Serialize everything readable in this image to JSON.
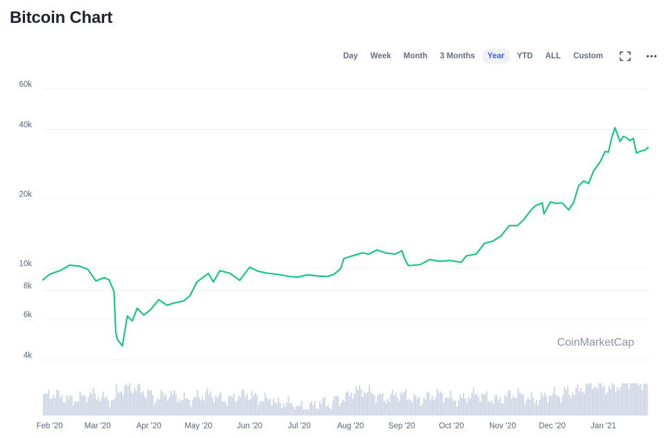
{
  "page": {
    "title": "Bitcoin Chart"
  },
  "toolbar": {
    "ranges": [
      {
        "label": "Day",
        "active": false
      },
      {
        "label": "Week",
        "active": false
      },
      {
        "label": "Month",
        "active": false
      },
      {
        "label": "3 Months",
        "active": false
      },
      {
        "label": "Year",
        "active": true
      },
      {
        "label": "YTD",
        "active": false
      },
      {
        "label": "ALL",
        "active": false
      },
      {
        "label": "Custom",
        "active": false
      }
    ],
    "icons": [
      "fullscreen-icon",
      "more-options-icon"
    ]
  },
  "watermark": "CoinMarketCap",
  "colors": {
    "line": "#16c784",
    "volume": "#cfd6e4",
    "grid": "#eff2f5",
    "active_tab_text": "#3861fb"
  },
  "chart_data": {
    "type": "line",
    "title": "",
    "xlabel": "",
    "ylabel": "",
    "y_scale": "log",
    "ylim": [
      3900,
      68000
    ],
    "grid": "horizontal",
    "y_ticks": [
      {
        "value": 4000,
        "label": "4k"
      },
      {
        "value": 6000,
        "label": "6k"
      },
      {
        "value": 8000,
        "label": "8k"
      },
      {
        "value": 10000,
        "label": "10k"
      },
      {
        "value": 20000,
        "label": "20k"
      },
      {
        "value": 40000,
        "label": "40k"
      },
      {
        "value": 60000,
        "label": "60k"
      }
    ],
    "x_range": [
      "2020-01-28",
      "2021-01-28"
    ],
    "x_ticks": [
      {
        "date": "2020-02-01",
        "label": "Feb '20"
      },
      {
        "date": "2020-03-01",
        "label": "Mar '20"
      },
      {
        "date": "2020-04-01",
        "label": "Apr '20"
      },
      {
        "date": "2020-05-01",
        "label": "May '20"
      },
      {
        "date": "2020-06-01",
        "label": "Jun '20"
      },
      {
        "date": "2020-07-01",
        "label": "Jul '20"
      },
      {
        "date": "2020-08-01",
        "label": "Aug '20"
      },
      {
        "date": "2020-09-01",
        "label": "Sep '20"
      },
      {
        "date": "2020-10-01",
        "label": "Oct '20"
      },
      {
        "date": "2020-11-01",
        "label": "Nov '20"
      },
      {
        "date": "2020-12-01",
        "label": "Dec '20"
      },
      {
        "date": "2021-01-01",
        "label": "Jan '21"
      }
    ],
    "price": [
      [
        "2020-01-28",
        8900
      ],
      [
        "2020-02-01",
        9400
      ],
      [
        "2020-02-08",
        9800
      ],
      [
        "2020-02-13",
        10300
      ],
      [
        "2020-02-19",
        10200
      ],
      [
        "2020-02-24",
        9900
      ],
      [
        "2020-02-29",
        8800
      ],
      [
        "2020-03-05",
        9100
      ],
      [
        "2020-03-08",
        8900
      ],
      [
        "2020-03-11",
        7900
      ],
      [
        "2020-03-12",
        5300
      ],
      [
        "2020-03-13",
        4900
      ],
      [
        "2020-03-16",
        4600
      ],
      [
        "2020-03-19",
        6200
      ],
      [
        "2020-03-22",
        5900
      ],
      [
        "2020-03-25",
        6700
      ],
      [
        "2020-03-29",
        6250
      ],
      [
        "2020-04-02",
        6600
      ],
      [
        "2020-04-07",
        7300
      ],
      [
        "2020-04-12",
        6900
      ],
      [
        "2020-04-16",
        7050
      ],
      [
        "2020-04-22",
        7200
      ],
      [
        "2020-04-26",
        7600
      ],
      [
        "2020-04-30",
        8700
      ],
      [
        "2020-05-07",
        9500
      ],
      [
        "2020-05-10",
        8700
      ],
      [
        "2020-05-14",
        9750
      ],
      [
        "2020-05-20",
        9500
      ],
      [
        "2020-05-26",
        8850
      ],
      [
        "2020-06-01",
        10100
      ],
      [
        "2020-06-06",
        9700
      ],
      [
        "2020-06-12",
        9500
      ],
      [
        "2020-06-18",
        9400
      ],
      [
        "2020-06-25",
        9200
      ],
      [
        "2020-06-30",
        9150
      ],
      [
        "2020-07-06",
        9350
      ],
      [
        "2020-07-12",
        9250
      ],
      [
        "2020-07-18",
        9200
      ],
      [
        "2020-07-22",
        9400
      ],
      [
        "2020-07-26",
        9950
      ],
      [
        "2020-07-28",
        11000
      ],
      [
        "2020-08-02",
        11300
      ],
      [
        "2020-08-08",
        11650
      ],
      [
        "2020-08-12",
        11500
      ],
      [
        "2020-08-17",
        12000
      ],
      [
        "2020-08-22",
        11650
      ],
      [
        "2020-08-28",
        11500
      ],
      [
        "2020-09-01",
        11900
      ],
      [
        "2020-09-03",
        10900
      ],
      [
        "2020-09-05",
        10250
      ],
      [
        "2020-09-12",
        10350
      ],
      [
        "2020-09-18",
        10900
      ],
      [
        "2020-09-24",
        10700
      ],
      [
        "2020-09-30",
        10800
      ],
      [
        "2020-10-07",
        10600
      ],
      [
        "2020-10-10",
        11300
      ],
      [
        "2020-10-16",
        11500
      ],
      [
        "2020-10-21",
        12800
      ],
      [
        "2020-10-26",
        13100
      ],
      [
        "2020-10-31",
        13800
      ],
      [
        "2020-11-05",
        15300
      ],
      [
        "2020-11-10",
        15300
      ],
      [
        "2020-11-14",
        16300
      ],
      [
        "2020-11-18",
        17800
      ],
      [
        "2020-11-21",
        18700
      ],
      [
        "2020-11-25",
        19200
      ],
      [
        "2020-11-26",
        17200
      ],
      [
        "2020-11-30",
        19400
      ],
      [
        "2020-12-03",
        19100
      ],
      [
        "2020-12-07",
        19200
      ],
      [
        "2020-12-11",
        17900
      ],
      [
        "2020-12-14",
        19300
      ],
      [
        "2020-12-17",
        22800
      ],
      [
        "2020-12-20",
        23900
      ],
      [
        "2020-12-23",
        23300
      ],
      [
        "2020-12-26",
        26400
      ],
      [
        "2020-12-30",
        28900
      ],
      [
        "2021-01-02",
        32100
      ],
      [
        "2021-01-04",
        31900
      ],
      [
        "2021-01-06",
        36800
      ],
      [
        "2021-01-08",
        40700
      ],
      [
        "2021-01-11",
        35500
      ],
      [
        "2021-01-13",
        37300
      ],
      [
        "2021-01-15",
        36800
      ],
      [
        "2021-01-17",
        35800
      ],
      [
        "2021-01-19",
        36600
      ],
      [
        "2021-01-21",
        31600
      ],
      [
        "2021-01-24",
        32300
      ],
      [
        "2021-01-26",
        32500
      ],
      [
        "2021-01-28",
        33400
      ]
    ]
  }
}
